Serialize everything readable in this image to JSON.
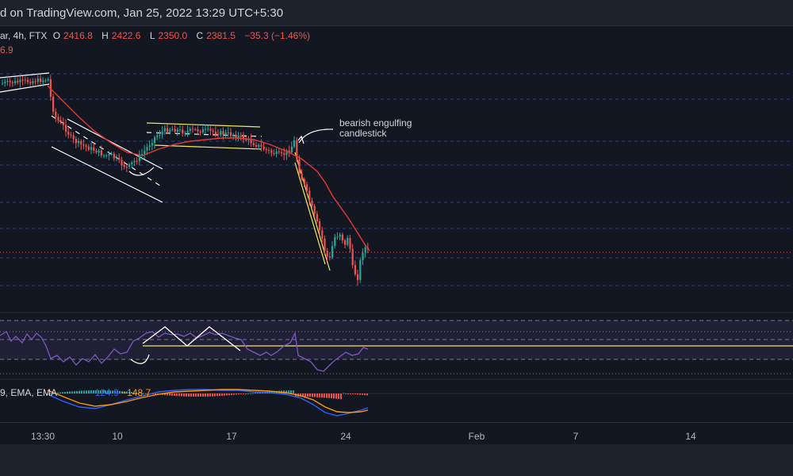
{
  "header": {
    "text": "d on TradingView.com, Jan 25, 2022 13:29 UTC+5:30"
  },
  "ohlc": {
    "symbol_tail": "ar, 4h, FTX",
    "open_label": "O",
    "open": "2416.8",
    "high_label": "H",
    "high": "2422.6",
    "low_label": "L",
    "low": "2350.0",
    "close_label": "C",
    "close": "2381.5",
    "change": "−35.3 (−1.46%)"
  },
  "ma_value": "6.9",
  "annotation": {
    "line1": "bearish engulfing",
    "line2": "candlestick"
  },
  "macd_legend": {
    "prefix": "9, EMA, EMA",
    "val1": "−124.9",
    "val2": "−148.7"
  },
  "time_axis": [
    "13:30",
    "10",
    "17",
    "24",
    "Feb",
    "7",
    "14"
  ],
  "colors": {
    "background": "#131722",
    "up": "#26a69a",
    "down": "#ef5350",
    "ma": "#e53935",
    "rsi": "#7e57c2",
    "yellow": "#f5e663",
    "macd": "#2962ff",
    "signal": "#ff9800"
  }
}
